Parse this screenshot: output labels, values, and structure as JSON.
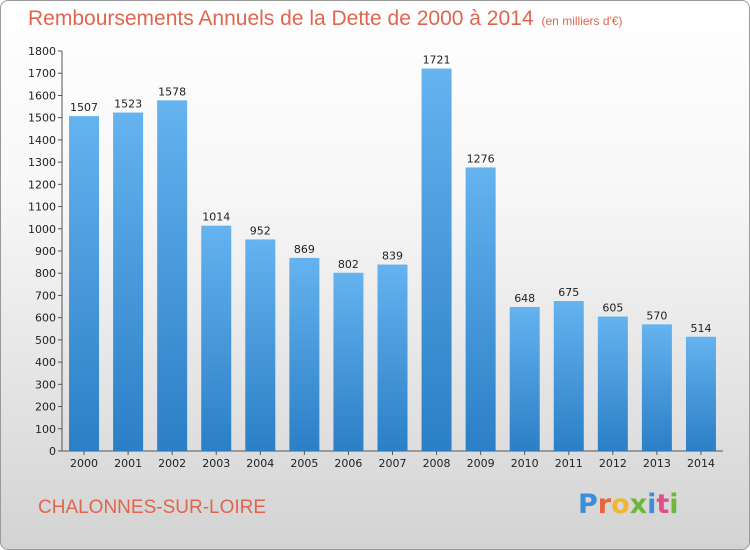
{
  "header": {
    "title": "Remboursements Annuels de la Dette de 2000 à 2014",
    "unit": "(en milliers d'€)"
  },
  "footer": {
    "city": "CHALONNES-SUR-LOIRE",
    "logo": "Proxiti",
    "logo_colors": [
      "#3a8fd8",
      "#e8643c",
      "#f2b632",
      "#6cb83a",
      "#3a8fd8",
      "#e04f8c",
      "#6cb83a"
    ]
  },
  "colors": {
    "bar_top": "#65b3ef",
    "bar_bottom": "#2a7fc6",
    "title": "#e0654f"
  },
  "chart_data": {
    "type": "bar",
    "categories": [
      "2000",
      "2001",
      "2002",
      "2003",
      "2004",
      "2005",
      "2006",
      "2007",
      "2008",
      "2009",
      "2010",
      "2011",
      "2012",
      "2013",
      "2014"
    ],
    "values": [
      1507,
      1523,
      1578,
      1014,
      952,
      869,
      802,
      839,
      1721,
      1276,
      648,
      675,
      605,
      570,
      514
    ],
    "title": "Remboursements Annuels de la Dette de 2000 à 2014",
    "xlabel": "",
    "ylabel": "",
    "ylim": [
      0,
      1800
    ],
    "yticks": [
      0,
      100,
      200,
      300,
      400,
      500,
      600,
      700,
      800,
      900,
      1000,
      1100,
      1200,
      1300,
      1400,
      1500,
      1600,
      1700,
      1800
    ],
    "grid": false,
    "data_labels": true
  }
}
